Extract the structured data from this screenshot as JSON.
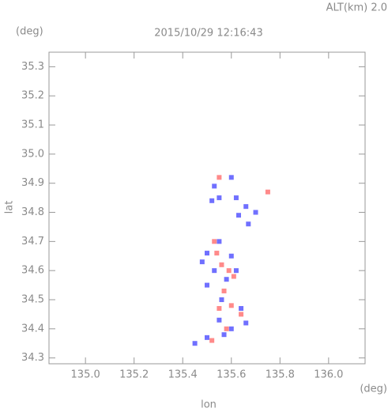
{
  "chart_data": {
    "type": "scatter",
    "title": "2015/10/29 12:16:43",
    "subtitle": "ALT(km) 2.0",
    "y_unit": "(deg)",
    "x_unit": "(deg)",
    "x_label": "lon",
    "y_label": "lat",
    "xlim": [
      134.85,
      136.15
    ],
    "ylim": [
      34.28,
      35.35
    ],
    "xticks": [
      {
        "value": 135,
        "label": "135.0"
      },
      135.2,
      135.4,
      135.6,
      135.8,
      {
        "value": 136,
        "label": "136.0"
      }
    ],
    "yticks": [
      34.3,
      34.4,
      34.5,
      34.6,
      34.7,
      34.8,
      34.9,
      {
        "value": 35,
        "label": "35.0"
      },
      35.1,
      35.2,
      35.3
    ],
    "grid": false,
    "series": [
      {
        "color": "#7070ff",
        "x": [
          135.53,
          135.55,
          135.52,
          135.6,
          135.62,
          135.66,
          135.7,
          135.67,
          135.63,
          135.5,
          135.55,
          135.6,
          135.53,
          135.58,
          135.62,
          135.5,
          135.56,
          135.64,
          135.55,
          135.6,
          135.5,
          135.45,
          135.57,
          135.66,
          135.48
        ],
        "values": [
          34.89,
          34.85,
          34.84,
          34.92,
          34.85,
          34.82,
          34.8,
          34.76,
          34.79,
          34.66,
          34.7,
          34.65,
          34.6,
          34.57,
          34.6,
          34.55,
          34.5,
          34.47,
          34.43,
          34.4,
          34.37,
          34.35,
          34.38,
          34.42,
          34.63
        ]
      },
      {
        "color": "#ff8a8a",
        "x": [
          135.56,
          135.59,
          135.54,
          135.57,
          135.6,
          135.55,
          135.58,
          135.52,
          135.61,
          135.55,
          135.75,
          135.53,
          135.64
        ],
        "values": [
          34.62,
          34.6,
          34.66,
          34.53,
          34.48,
          34.47,
          34.4,
          34.36,
          34.58,
          34.92,
          34.87,
          34.7,
          34.45
        ]
      }
    ]
  }
}
